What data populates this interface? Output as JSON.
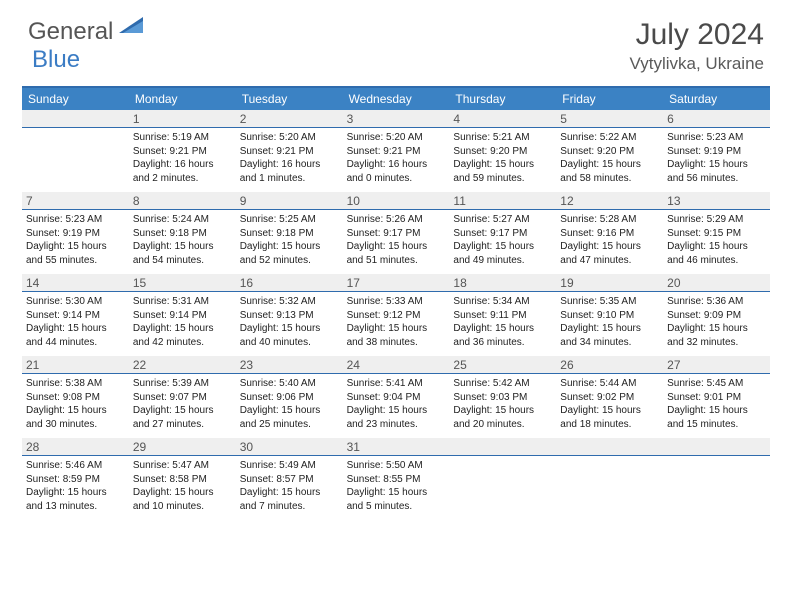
{
  "brand": {
    "text1": "General",
    "text2": "Blue"
  },
  "title": "July 2024",
  "location": "Vytylivka, Ukraine",
  "day_headers": [
    "Sunday",
    "Monday",
    "Tuesday",
    "Wednesday",
    "Thursday",
    "Friday",
    "Saturday"
  ],
  "colors": {
    "header_bg": "#3b82c4",
    "rule": "#2f6bad",
    "daynum_bg": "#efefef",
    "text": "#222222",
    "title": "#4a4a4a"
  },
  "fonts": {
    "title_size": 30,
    "location_size": 17,
    "header_size": 12,
    "daynum_size": 12,
    "body_size": 10
  },
  "layout": {
    "cols": 7,
    "rows": 5,
    "first_blank_cells": 1
  },
  "days": [
    {
      "n": "1",
      "sr": "5:19 AM",
      "ss": "9:21 PM",
      "dl": "16 hours and 2 minutes."
    },
    {
      "n": "2",
      "sr": "5:20 AM",
      "ss": "9:21 PM",
      "dl": "16 hours and 1 minutes."
    },
    {
      "n": "3",
      "sr": "5:20 AM",
      "ss": "9:21 PM",
      "dl": "16 hours and 0 minutes."
    },
    {
      "n": "4",
      "sr": "5:21 AM",
      "ss": "9:20 PM",
      "dl": "15 hours and 59 minutes."
    },
    {
      "n": "5",
      "sr": "5:22 AM",
      "ss": "9:20 PM",
      "dl": "15 hours and 58 minutes."
    },
    {
      "n": "6",
      "sr": "5:23 AM",
      "ss": "9:19 PM",
      "dl": "15 hours and 56 minutes."
    },
    {
      "n": "7",
      "sr": "5:23 AM",
      "ss": "9:19 PM",
      "dl": "15 hours and 55 minutes."
    },
    {
      "n": "8",
      "sr": "5:24 AM",
      "ss": "9:18 PM",
      "dl": "15 hours and 54 minutes."
    },
    {
      "n": "9",
      "sr": "5:25 AM",
      "ss": "9:18 PM",
      "dl": "15 hours and 52 minutes."
    },
    {
      "n": "10",
      "sr": "5:26 AM",
      "ss": "9:17 PM",
      "dl": "15 hours and 51 minutes."
    },
    {
      "n": "11",
      "sr": "5:27 AM",
      "ss": "9:17 PM",
      "dl": "15 hours and 49 minutes."
    },
    {
      "n": "12",
      "sr": "5:28 AM",
      "ss": "9:16 PM",
      "dl": "15 hours and 47 minutes."
    },
    {
      "n": "13",
      "sr": "5:29 AM",
      "ss": "9:15 PM",
      "dl": "15 hours and 46 minutes."
    },
    {
      "n": "14",
      "sr": "5:30 AM",
      "ss": "9:14 PM",
      "dl": "15 hours and 44 minutes."
    },
    {
      "n": "15",
      "sr": "5:31 AM",
      "ss": "9:14 PM",
      "dl": "15 hours and 42 minutes."
    },
    {
      "n": "16",
      "sr": "5:32 AM",
      "ss": "9:13 PM",
      "dl": "15 hours and 40 minutes."
    },
    {
      "n": "17",
      "sr": "5:33 AM",
      "ss": "9:12 PM",
      "dl": "15 hours and 38 minutes."
    },
    {
      "n": "18",
      "sr": "5:34 AM",
      "ss": "9:11 PM",
      "dl": "15 hours and 36 minutes."
    },
    {
      "n": "19",
      "sr": "5:35 AM",
      "ss": "9:10 PM",
      "dl": "15 hours and 34 minutes."
    },
    {
      "n": "20",
      "sr": "5:36 AM",
      "ss": "9:09 PM",
      "dl": "15 hours and 32 minutes."
    },
    {
      "n": "21",
      "sr": "5:38 AM",
      "ss": "9:08 PM",
      "dl": "15 hours and 30 minutes."
    },
    {
      "n": "22",
      "sr": "5:39 AM",
      "ss": "9:07 PM",
      "dl": "15 hours and 27 minutes."
    },
    {
      "n": "23",
      "sr": "5:40 AM",
      "ss": "9:06 PM",
      "dl": "15 hours and 25 minutes."
    },
    {
      "n": "24",
      "sr": "5:41 AM",
      "ss": "9:04 PM",
      "dl": "15 hours and 23 minutes."
    },
    {
      "n": "25",
      "sr": "5:42 AM",
      "ss": "9:03 PM",
      "dl": "15 hours and 20 minutes."
    },
    {
      "n": "26",
      "sr": "5:44 AM",
      "ss": "9:02 PM",
      "dl": "15 hours and 18 minutes."
    },
    {
      "n": "27",
      "sr": "5:45 AM",
      "ss": "9:01 PM",
      "dl": "15 hours and 15 minutes."
    },
    {
      "n": "28",
      "sr": "5:46 AM",
      "ss": "8:59 PM",
      "dl": "15 hours and 13 minutes."
    },
    {
      "n": "29",
      "sr": "5:47 AM",
      "ss": "8:58 PM",
      "dl": "15 hours and 10 minutes."
    },
    {
      "n": "30",
      "sr": "5:49 AM",
      "ss": "8:57 PM",
      "dl": "15 hours and 7 minutes."
    },
    {
      "n": "31",
      "sr": "5:50 AM",
      "ss": "8:55 PM",
      "dl": "15 hours and 5 minutes."
    }
  ],
  "labels": {
    "sunrise": "Sunrise:",
    "sunset": "Sunset:",
    "daylight": "Daylight:"
  }
}
